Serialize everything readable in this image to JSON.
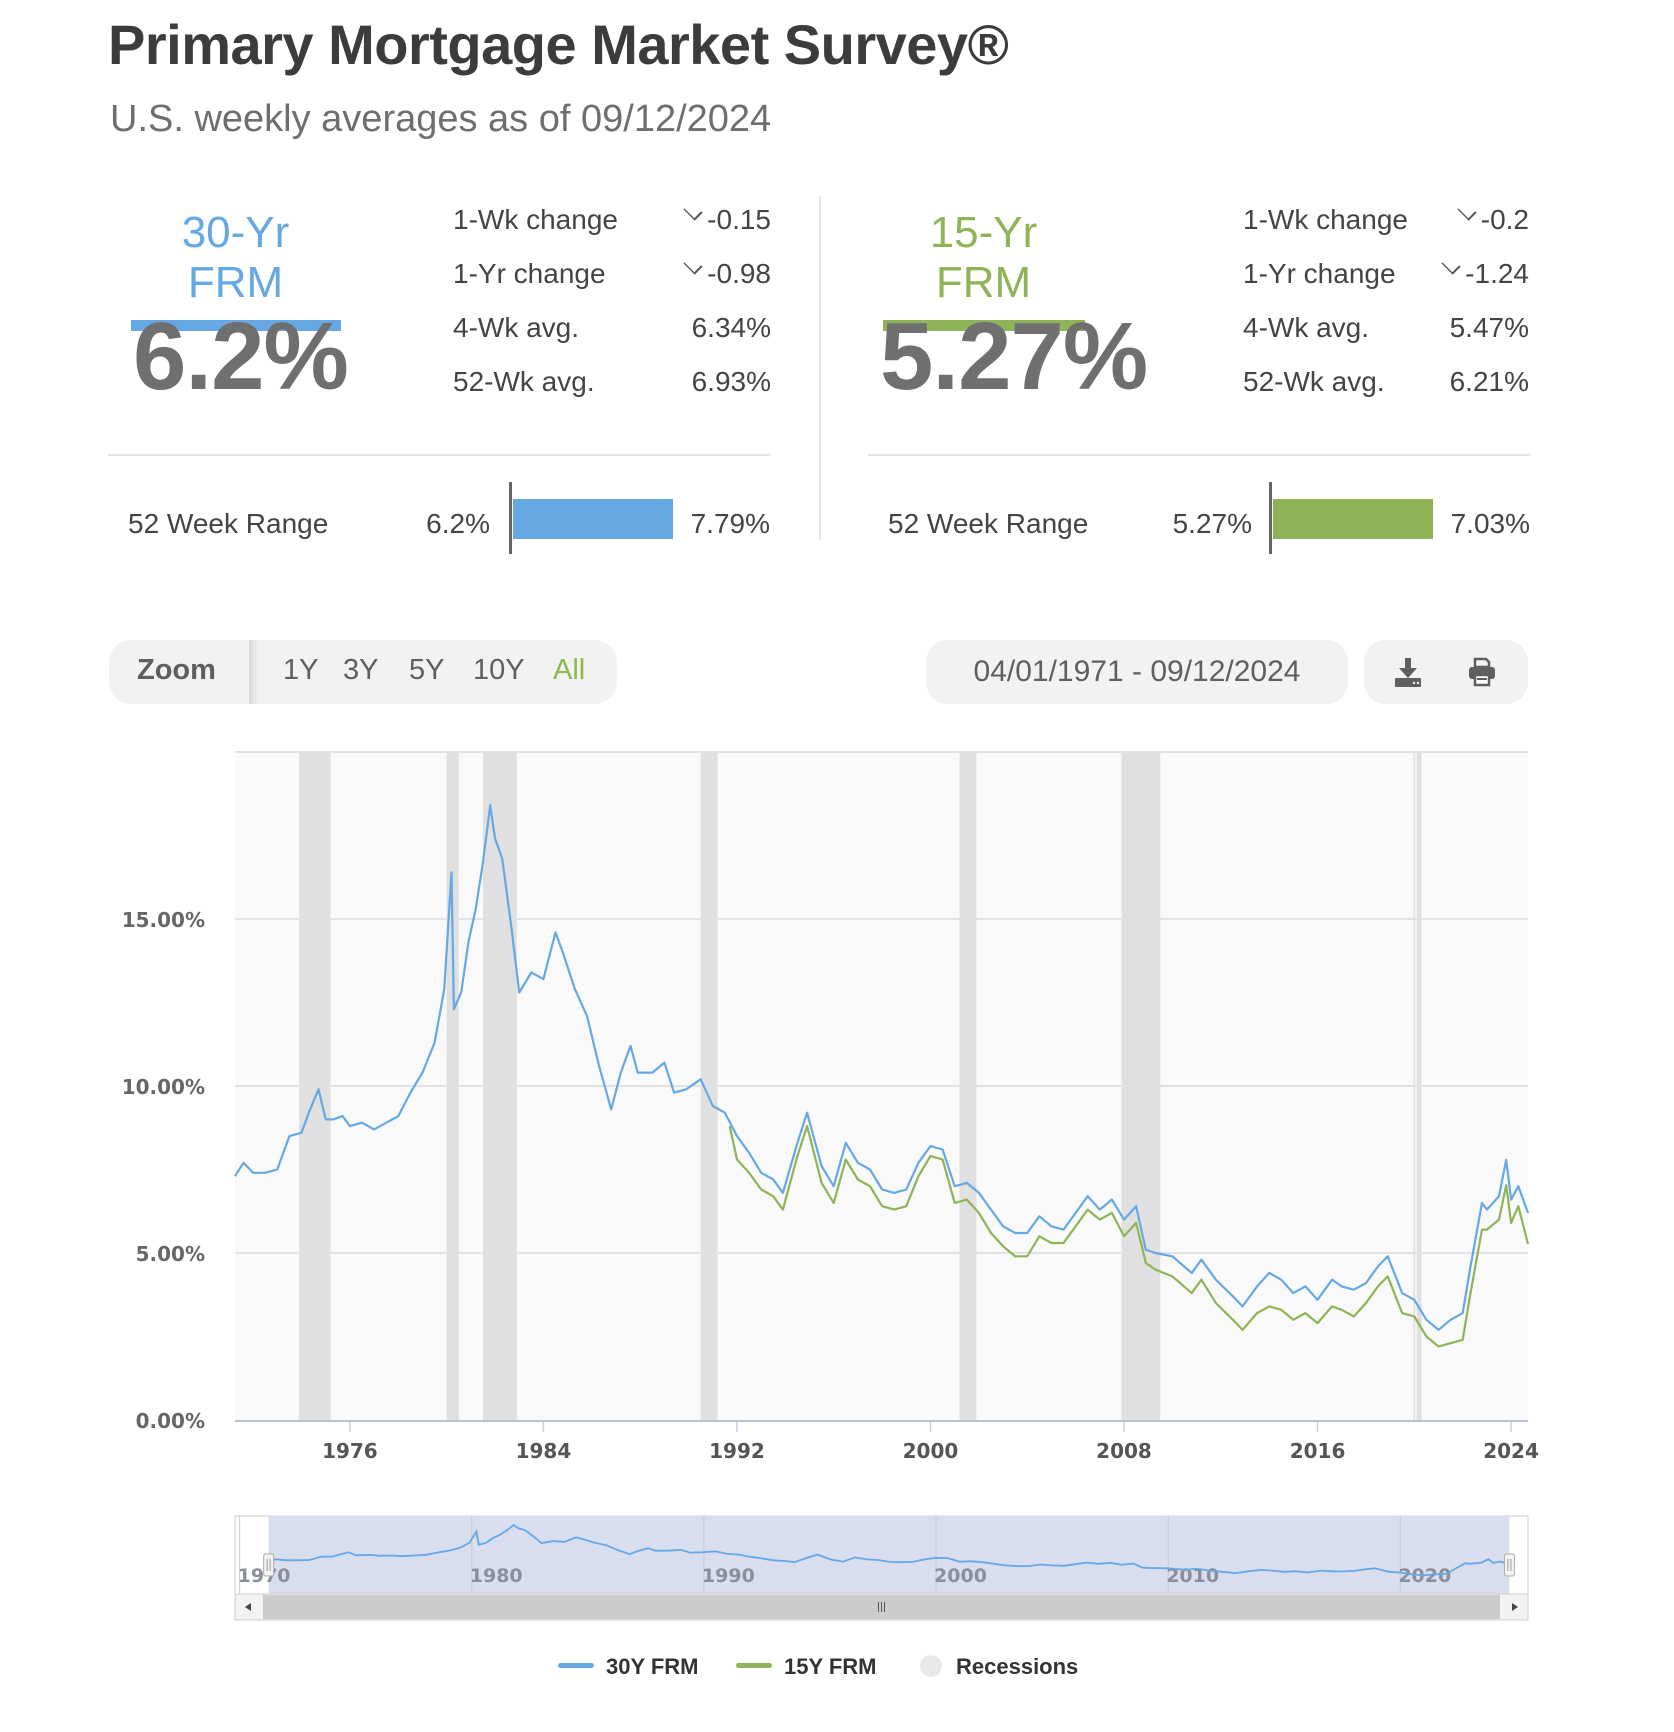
{
  "header": {
    "title": "Primary Mortgage Market Survey®",
    "subtitle": "U.S. weekly averages as of 09/12/2024"
  },
  "colors": {
    "frm30": "#65a8e3",
    "frm15": "#8fb356",
    "recession": "#e0e0e0",
    "zoom_active": "#8bba4a"
  },
  "products": [
    {
      "name": "30-Yr FRM",
      "rate": "6.2%",
      "stats": [
        {
          "label": "1-Wk change",
          "value": "-0.15",
          "direction": "down"
        },
        {
          "label": "1-Yr change",
          "value": "-0.98",
          "direction": "down"
        },
        {
          "label": "4-Wk avg.",
          "value": "6.34%"
        },
        {
          "label": "52-Wk avg.",
          "value": "6.93%"
        }
      ],
      "range": {
        "label": "52 Week Range",
        "min": "6.2%",
        "max": "7.79%"
      }
    },
    {
      "name": "15-Yr FRM",
      "rate": "5.27%",
      "stats": [
        {
          "label": "1-Wk change",
          "value": "-0.2",
          "direction": "down"
        },
        {
          "label": "1-Yr change",
          "value": "-1.24",
          "direction": "down"
        },
        {
          "label": "4-Wk avg.",
          "value": "5.47%"
        },
        {
          "label": "52-Wk avg.",
          "value": "6.21%"
        }
      ],
      "range": {
        "label": "52 Week Range",
        "min": "5.27%",
        "max": "7.03%"
      }
    }
  ],
  "toolbar": {
    "zoom_label": "Zoom",
    "zoom_options": [
      "1Y",
      "3Y",
      "5Y",
      "10Y",
      "All"
    ],
    "zoom_active": "All",
    "date_range": "04/01/1971 - 09/12/2024",
    "download_icon": "download-icon",
    "print_icon": "print-icon"
  },
  "legend": {
    "items": [
      {
        "label": "30Y FRM",
        "icon": "line-swatch"
      },
      {
        "label": "15Y FRM",
        "icon": "line-swatch"
      },
      {
        "label": "Recessions",
        "icon": "circle-swatch"
      }
    ]
  },
  "chart_data": {
    "type": "line",
    "title": "Primary Mortgage Market Survey®",
    "xlabel": "",
    "ylabel": "",
    "ylim": [
      0,
      20
    ],
    "xlim": [
      1971.25,
      2024.7
    ],
    "grid": true,
    "legend_position": "bottom",
    "y_ticks": [
      "0.00%",
      "5.00%",
      "10.00%",
      "15.00%"
    ],
    "x_ticks": [
      "1976",
      "1984",
      "1992",
      "2000",
      "2008",
      "2016",
      "2024"
    ],
    "navigator_ticks": [
      "1970",
      "1980",
      "1990",
      "2000",
      "2010",
      "2020"
    ],
    "recessions": [
      [
        1973.9,
        1975.2
      ],
      [
        1980.0,
        1980.5
      ],
      [
        1981.5,
        1982.9
      ],
      [
        1990.5,
        1991.2
      ],
      [
        2001.2,
        2001.9
      ],
      [
        2007.9,
        2009.5
      ],
      [
        2020.1,
        2020.3
      ]
    ],
    "series": [
      {
        "name": "30Y FRM",
        "x": [
          1971.25,
          1971.6,
          1972.0,
          1972.5,
          1973.0,
          1973.5,
          1974.0,
          1974.3,
          1974.7,
          1975.0,
          1975.3,
          1975.7,
          1976.0,
          1976.5,
          1977.0,
          1977.5,
          1978.0,
          1978.5,
          1979.0,
          1979.5,
          1979.9,
          1980.2,
          1980.3,
          1980.6,
          1980.9,
          1981.2,
          1981.5,
          1981.8,
          1982.0,
          1982.3,
          1982.7,
          1983.0,
          1983.5,
          1984.0,
          1984.5,
          1984.8,
          1985.3,
          1985.8,
          1986.3,
          1986.8,
          1987.2,
          1987.6,
          1987.9,
          1988.5,
          1989.0,
          1989.4,
          1989.9,
          1990.5,
          1991.0,
          1991.5,
          1992.0,
          1992.5,
          1993.0,
          1993.5,
          1993.9,
          1994.5,
          1994.9,
          1995.5,
          1996.0,
          1996.5,
          1997.0,
          1997.5,
          1998.0,
          1998.5,
          1999.0,
          1999.5,
          2000.0,
          2000.5,
          2001.0,
          2001.5,
          2002.0,
          2002.5,
          2003.0,
          2003.5,
          2004.0,
          2004.5,
          2005.0,
          2005.5,
          2006.0,
          2006.5,
          2007.0,
          2007.5,
          2008.0,
          2008.5,
          2008.9,
          2009.3,
          2010.0,
          2010.8,
          2011.2,
          2011.8,
          2012.5,
          2012.9,
          2013.5,
          2014.0,
          2014.5,
          2015.0,
          2015.5,
          2016.0,
          2016.6,
          2017.0,
          2017.5,
          2018.0,
          2018.5,
          2018.9,
          2019.5,
          2020.0,
          2020.5,
          2021.0,
          2021.5,
          2022.0,
          2022.3,
          2022.8,
          2023.0,
          2023.5,
          2023.8,
          2024.0,
          2024.3,
          2024.7
        ],
        "values": [
          7.3,
          7.7,
          7.4,
          7.4,
          7.5,
          8.5,
          8.6,
          9.2,
          9.9,
          9.0,
          9.0,
          9.1,
          8.8,
          8.9,
          8.7,
          8.9,
          9.1,
          9.8,
          10.4,
          11.3,
          12.9,
          16.4,
          12.3,
          12.8,
          14.3,
          15.3,
          16.7,
          18.4,
          17.4,
          16.8,
          14.6,
          12.8,
          13.4,
          13.2,
          14.6,
          14.0,
          12.9,
          12.1,
          10.6,
          9.3,
          10.4,
          11.2,
          10.4,
          10.4,
          10.7,
          9.8,
          9.9,
          10.2,
          9.4,
          9.2,
          8.5,
          8.0,
          7.4,
          7.2,
          6.8,
          8.3,
          9.2,
          7.6,
          7.0,
          8.3,
          7.7,
          7.5,
          6.9,
          6.8,
          6.9,
          7.7,
          8.2,
          8.1,
          7.0,
          7.1,
          6.8,
          6.3,
          5.8,
          5.6,
          5.6,
          6.1,
          5.8,
          5.7,
          6.2,
          6.7,
          6.3,
          6.6,
          6.0,
          6.4,
          5.1,
          5.0,
          4.9,
          4.4,
          4.8,
          4.2,
          3.7,
          3.4,
          4.0,
          4.4,
          4.2,
          3.8,
          4.0,
          3.6,
          4.2,
          4.0,
          3.9,
          4.1,
          4.6,
          4.9,
          3.8,
          3.6,
          3.0,
          2.7,
          3.0,
          3.2,
          4.5,
          6.5,
          6.3,
          6.7,
          7.79,
          6.6,
          7.0,
          6.2
        ]
      },
      {
        "name": "15Y FRM",
        "x": [
          1991.7,
          1992.0,
          1992.5,
          1993.0,
          1993.5,
          1993.9,
          1994.5,
          1994.9,
          1995.5,
          1996.0,
          1996.5,
          1997.0,
          1997.5,
          1998.0,
          1998.5,
          1999.0,
          1999.5,
          2000.0,
          2000.5,
          2001.0,
          2001.5,
          2002.0,
          2002.5,
          2003.0,
          2003.5,
          2004.0,
          2004.5,
          2005.0,
          2005.5,
          2006.0,
          2006.5,
          2007.0,
          2007.5,
          2008.0,
          2008.5,
          2008.9,
          2009.3,
          2010.0,
          2010.8,
          2011.2,
          2011.8,
          2012.5,
          2012.9,
          2013.5,
          2014.0,
          2014.5,
          2015.0,
          2015.5,
          2016.0,
          2016.6,
          2017.0,
          2017.5,
          2018.0,
          2018.5,
          2018.9,
          2019.5,
          2020.0,
          2020.5,
          2021.0,
          2021.5,
          2022.0,
          2022.3,
          2022.8,
          2023.0,
          2023.5,
          2023.8,
          2024.0,
          2024.3,
          2024.7
        ],
        "values": [
          8.8,
          7.8,
          7.4,
          6.9,
          6.7,
          6.3,
          7.9,
          8.8,
          7.1,
          6.5,
          7.8,
          7.2,
          7.0,
          6.4,
          6.3,
          6.4,
          7.3,
          7.9,
          7.8,
          6.5,
          6.6,
          6.2,
          5.6,
          5.2,
          4.9,
          4.9,
          5.5,
          5.3,
          5.3,
          5.8,
          6.3,
          6.0,
          6.2,
          5.5,
          5.9,
          4.7,
          4.5,
          4.3,
          3.8,
          4.2,
          3.5,
          3.0,
          2.7,
          3.2,
          3.4,
          3.3,
          3.0,
          3.2,
          2.9,
          3.4,
          3.3,
          3.1,
          3.5,
          4.0,
          4.3,
          3.2,
          3.1,
          2.5,
          2.2,
          2.3,
          2.4,
          3.7,
          5.7,
          5.7,
          6.0,
          7.03,
          5.9,
          6.4,
          5.27
        ]
      }
    ]
  }
}
